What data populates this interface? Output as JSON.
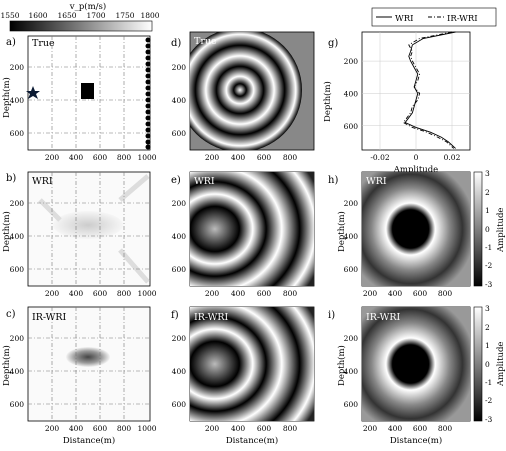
{
  "colorbar_top": {
    "label": "v_p(m/s)",
    "ticks": [
      1550,
      1600,
      1650,
      1700,
      1750,
      1800
    ]
  },
  "colorbar_right": {
    "label": "Amplitude",
    "ticks": [
      3,
      2,
      1,
      0,
      -1,
      -2,
      -3
    ]
  },
  "axes": {
    "depth_label": "Depth(m)",
    "distance_label": "Distance(m)",
    "depth_ticks": [
      200,
      400,
      600
    ],
    "distance_ticks": [
      200,
      400,
      600,
      800,
      1000
    ],
    "distance_ticks_short": [
      200,
      400,
      600,
      800
    ]
  },
  "panels": {
    "a": {
      "label": "a)",
      "inset": "True"
    },
    "b": {
      "label": "b)",
      "inset": "WRI"
    },
    "c": {
      "label": "c)",
      "inset": "IR-WRI"
    },
    "d": {
      "label": "d)",
      "inset": "True"
    },
    "e": {
      "label": "e)",
      "inset": "WRI"
    },
    "f": {
      "label": "f)",
      "inset": "IR-WRI"
    },
    "g": {
      "label": "g)"
    },
    "h": {
      "label": "h)",
      "inset": "WRI"
    },
    "i": {
      "label": "i)",
      "inset": "IR-WRI"
    }
  },
  "chart_data": {
    "type": "line",
    "panel": "g",
    "xlabel": "Amplitude",
    "ylabel": "Depth(m)",
    "xticks": [
      "-0.02",
      "0",
      "0.02"
    ],
    "yticks": [
      200,
      400,
      600
    ],
    "xlim": [
      -0.03,
      0.03
    ],
    "ylim": [
      750,
      20
    ],
    "legend": "top",
    "series": [
      {
        "name": "WRI",
        "style": "solid",
        "depth": [
          20,
          60,
          100,
          140,
          170,
          200,
          240,
          280,
          320,
          360,
          400,
          440,
          480,
          520,
          550,
          580,
          610,
          640,
          670,
          700,
          740
        ],
        "amp": [
          0.022,
          0.004,
          -0.002,
          -0.003,
          -0.004,
          -0.003,
          -0.001,
          0.001,
          0.0,
          -0.001,
          0.001,
          0.0,
          -0.001,
          -0.002,
          -0.004,
          -0.006,
          0.0,
          0.008,
          0.014,
          0.018,
          0.022
        ]
      },
      {
        "name": "IR-WRI",
        "style": "dashdot",
        "depth": [
          20,
          60,
          100,
          140,
          170,
          200,
          240,
          280,
          320,
          360,
          400,
          440,
          480,
          520,
          550,
          580,
          610,
          640,
          670,
          700,
          740
        ],
        "amp": [
          0.02,
          0.002,
          -0.004,
          -0.002,
          -0.003,
          -0.002,
          0.0,
          0.002,
          0.001,
          -0.001,
          0.002,
          0.001,
          -0.002,
          -0.003,
          -0.005,
          -0.007,
          -0.002,
          0.006,
          0.012,
          0.017,
          0.021
        ]
      }
    ]
  }
}
